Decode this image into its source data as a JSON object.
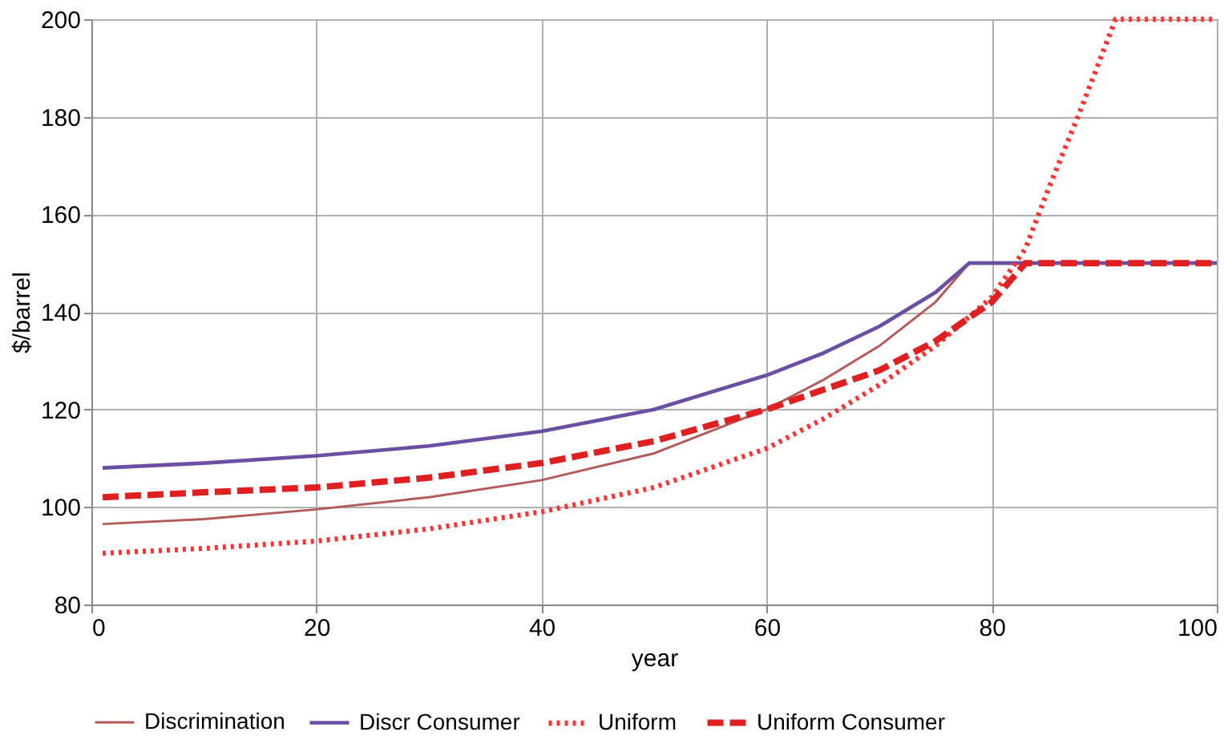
{
  "chart_data": {
    "type": "line",
    "xlabel": "year",
    "ylabel": "$/barrel",
    "xlim": [
      0,
      100
    ],
    "ylim": [
      80,
      200
    ],
    "xticks": [
      0,
      20,
      40,
      60,
      80,
      100
    ],
    "yticks": [
      80,
      100,
      120,
      140,
      160,
      180,
      200
    ],
    "grid": true,
    "legend": "bottom",
    "marker": "none",
    "series": [
      {
        "name": "Discrimination",
        "color": "#b35a5a",
        "line_style": "solid",
        "x": [
          1,
          10,
          20,
          30,
          40,
          50,
          60,
          65,
          70,
          75,
          78,
          100
        ],
        "values": [
          96.5,
          97.5,
          99.5,
          102,
          105.5,
          111,
          120,
          126,
          133,
          142,
          150,
          150
        ]
      },
      {
        "name": "Discr Consumer",
        "color": "#6a4fa3",
        "line_style": "solid",
        "x": [
          1,
          10,
          20,
          30,
          40,
          50,
          60,
          65,
          70,
          75,
          78,
          100
        ],
        "values": [
          108,
          109,
          110.5,
          112.5,
          115.5,
          120,
          127,
          131.5,
          137,
          144,
          150,
          150
        ]
      },
      {
        "name": "Uniform",
        "color": "#ff3333",
        "line_style": "dotted",
        "x": [
          1,
          10,
          20,
          30,
          40,
          50,
          60,
          65,
          70,
          75,
          80,
          83,
          85,
          88,
          91,
          100
        ],
        "values": [
          90.5,
          91.5,
          93,
          95.5,
          99,
          104,
          112,
          118,
          125,
          133,
          143,
          153,
          165,
          182,
          200,
          200
        ]
      },
      {
        "name": "Uniform Consumer",
        "color": "#e02020",
        "line_style": "dashed",
        "x": [
          1,
          10,
          20,
          30,
          40,
          50,
          60,
          65,
          70,
          75,
          80,
          83,
          100
        ],
        "values": [
          102,
          103,
          104,
          106,
          109,
          113.5,
          120,
          124,
          128,
          134,
          142,
          150,
          150
        ]
      }
    ]
  }
}
